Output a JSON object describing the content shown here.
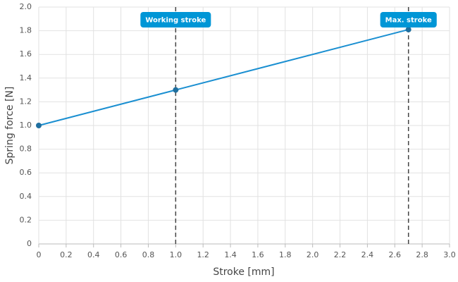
{
  "chart_data": {
    "type": "line",
    "x_label": "Stroke [mm]",
    "y_label": "Spring force [N]",
    "x": [
      0,
      1,
      2.7
    ],
    "series": [
      {
        "name": "Spring force",
        "color": "#1a8fd1",
        "values": [
          1,
          1.3,
          1.81
        ]
      }
    ],
    "xlim": [
      0,
      3
    ],
    "ylim": [
      0,
      2
    ],
    "xticks": [
      0,
      0.2,
      0.4,
      0.6,
      0.8,
      {
        "value": 1,
        "label": "1.0"
      },
      1.2,
      1.4,
      1.6,
      1.8,
      {
        "value": 2,
        "label": "2.0"
      },
      2.2,
      2.4,
      2.6,
      2.8,
      {
        "value": 3,
        "label": "3.0"
      }
    ],
    "yticks": [
      0,
      0.2,
      0.4,
      0.6,
      0.8,
      {
        "value": 1,
        "label": "1.0"
      },
      1.2,
      1.4,
      1.6,
      1.8,
      {
        "value": 2,
        "label": "2.0"
      }
    ],
    "grid": true,
    "annotations": [
      {
        "x": 1,
        "label": "Working stroke"
      },
      {
        "x": 2.7,
        "label": "Max. stroke"
      }
    ],
    "annotation_color": "#0096d6"
  }
}
